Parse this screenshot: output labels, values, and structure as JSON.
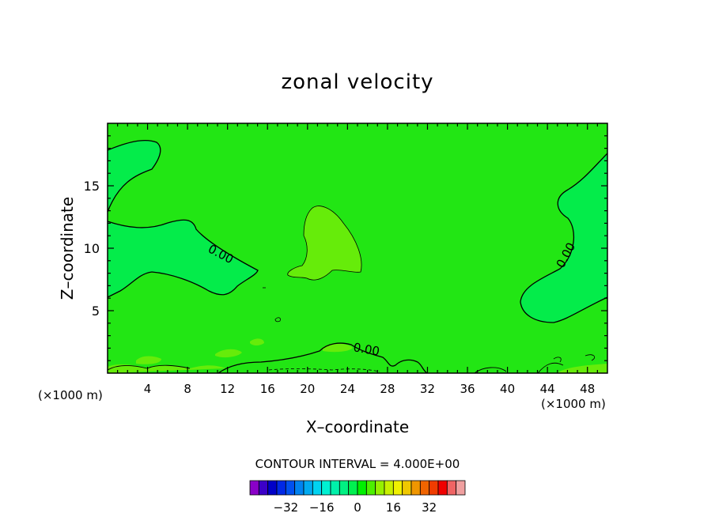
{
  "chart_data": {
    "type": "contour",
    "title": "zonal velocity",
    "xlabel": "X–coordinate",
    "ylabel": "Z–coordinate",
    "x_unit_left": "(×1000 m)",
    "x_unit_right": "(×1000 m)",
    "xlim": [
      0,
      50
    ],
    "ylim": [
      0,
      20
    ],
    "xticks": [
      4,
      8,
      12,
      16,
      20,
      24,
      28,
      32,
      36,
      40,
      44,
      48
    ],
    "yticks": [
      5,
      10,
      15
    ],
    "contour_labels": [
      "0.00",
      "0.00",
      "0.00"
    ],
    "contour_interval_text": "CONTOUR INTERVAL = 4.000E+00",
    "colorbar": {
      "ticks": [
        "−32",
        "−16",
        "0",
        "16",
        "32"
      ],
      "tick_values": [
        -32,
        -16,
        0,
        16,
        32
      ],
      "colors": [
        "#8a00c8",
        "#3c00c8",
        "#0000c8",
        "#0028e6",
        "#0050f0",
        "#0082f0",
        "#00aaf0",
        "#00d2f0",
        "#00f0d2",
        "#00f0aa",
        "#00f082",
        "#00f050",
        "#00f000",
        "#4cf000",
        "#96f000",
        "#c8f000",
        "#f0f000",
        "#f0c800",
        "#f09600",
        "#f06400",
        "#f03c00",
        "#f00000",
        "#f06464",
        "#f0a0a0"
      ]
    },
    "field_colors": {
      "background": "#22e614",
      "negative_region": "#04ec4a",
      "positive_region": "#66ec0a"
    }
  }
}
